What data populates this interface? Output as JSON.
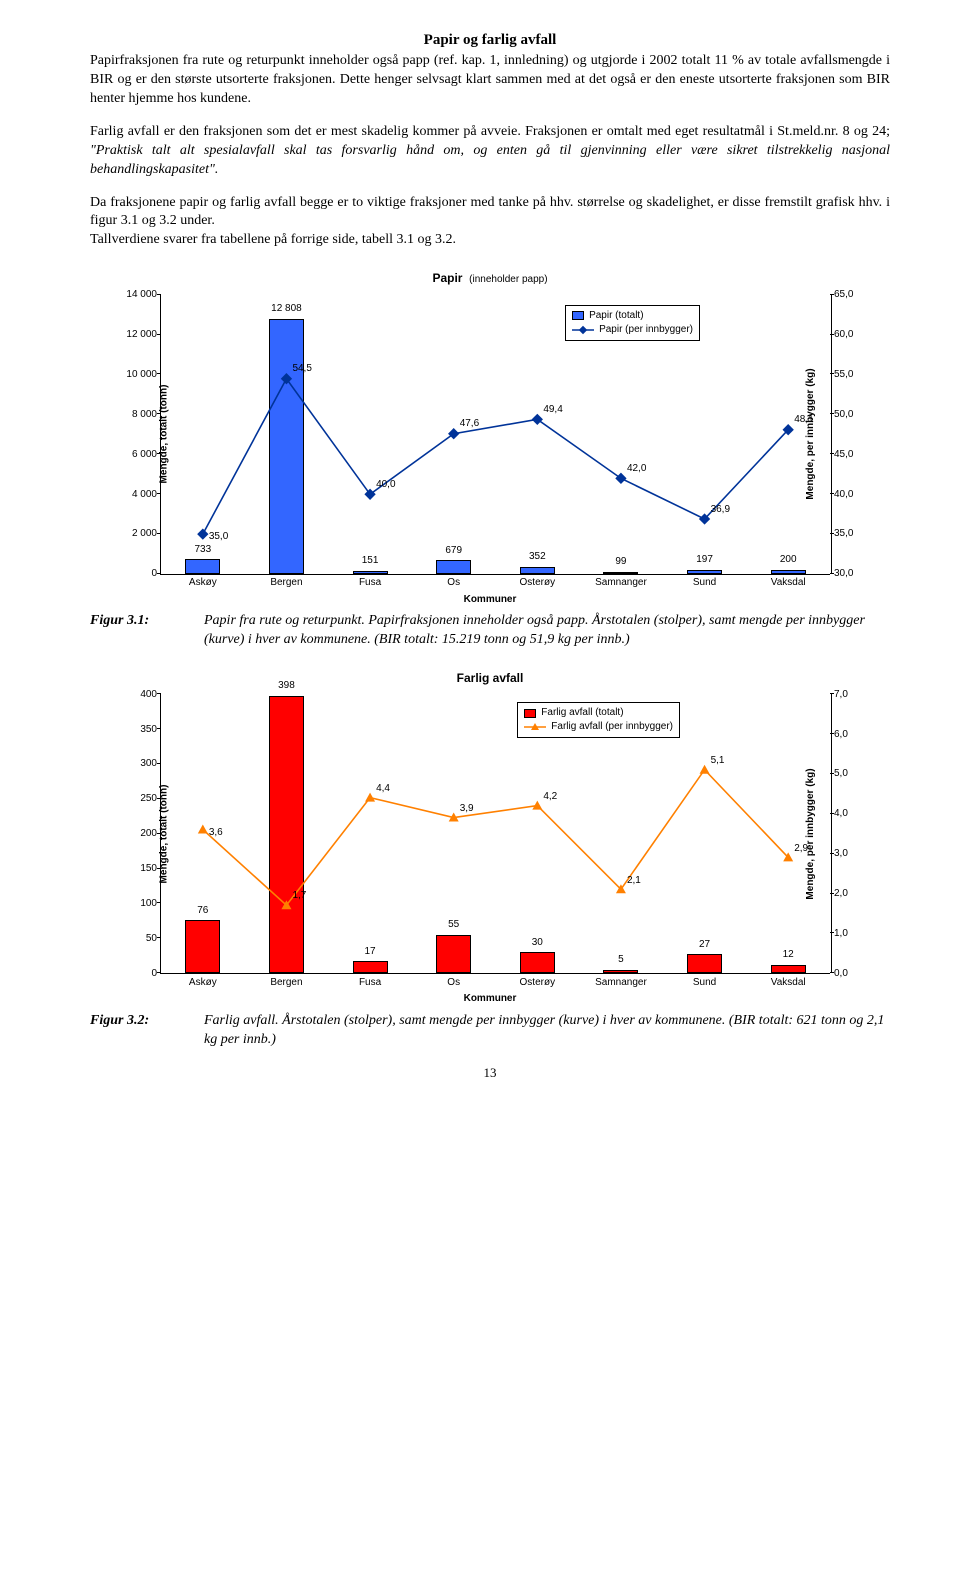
{
  "title": "Papir og farlig avfall",
  "paragraphs": {
    "p1": "Papirfraksjonen fra rute og returpunkt inneholder også papp (ref. kap. 1, innledning) og utgjorde i 2002 totalt 11 % av totale avfallsmengde i BIR og er den største utsorterte fraksjonen. Dette henger selvsagt klart sammen med at det også er den eneste utsorterte fraksjonen som BIR henter hjemme hos kundene.",
    "p2a": "Farlig avfall er den fraksjonen som det er mest skadelig kommer på avveie. Fraksjonen er omtalt med eget resultatmål i St.meld.nr. 8 og 24; ",
    "p2b": "\"Praktisk talt alt spesialavfall skal tas forsvarlig hånd om, og enten gå til gjenvinning eller være sikret tilstrekkelig nasjonal behandlingskapasitet\".",
    "p3": "Da fraksjonene papir og farlig avfall begge er to viktige fraksjoner med tanke på hhv. størrelse og skadelighet, er disse fremstilt grafisk hhv. i figur 3.1 og 3.2 under.",
    "p4": "Tallverdiene svarer fra tabellene på forrige side, tabell 3.1 og 3.2."
  },
  "categories": [
    "Askøy",
    "Bergen",
    "Fusa",
    "Os",
    "Osterøy",
    "Samnanger",
    "Sund",
    "Vaksdal"
  ],
  "chart1": {
    "title_main": "Papir",
    "title_sub": "(inneholder papp)",
    "legend_total": "Papir  (totalt)",
    "legend_per": "Papir  (per innbygger)",
    "ylabel_left": "Mengde, totalt  (tonn)",
    "ylabel_right": "Mengde, per innbygger   (kg)",
    "xlabel": "Kommuner",
    "bar_color": "#3366ff",
    "line_color": "#003399",
    "marker": "diamond",
    "y_left_max": 14000,
    "y_left_ticks": [
      "0",
      "2 000",
      "4 000",
      "6 000",
      "8 000",
      "10 000",
      "12 000",
      "14 000"
    ],
    "y_right_min": 30,
    "y_right_max": 65,
    "y_right_ticks": [
      "30,0",
      "35,0",
      "40,0",
      "45,0",
      "50,0",
      "55,0",
      "60,0",
      "65,0"
    ],
    "bars": [
      733,
      12808,
      151,
      679,
      352,
      99,
      197,
      200
    ],
    "bar_labels": [
      "733",
      "12 808",
      "151",
      "679",
      "352",
      "99",
      "197",
      "200"
    ],
    "line": [
      35.0,
      54.5,
      40.0,
      47.6,
      49.4,
      42.0,
      36.9,
      48.1
    ],
    "line_labels": [
      "35,0",
      "54,5",
      "40,0",
      "47,6",
      "49,4",
      "42,0",
      "36,9",
      "48,1"
    ]
  },
  "chart2": {
    "title_main": "Farlig avfall",
    "legend_total": "Farlig avfall   (totalt)",
    "legend_per": "Farlig avfall   (per innbygger)",
    "ylabel_left": "Mengde, totalt  (tonn)",
    "ylabel_right": "Mengde, per innbygger  (kg)",
    "xlabel": "Kommuner",
    "bar_color": "#ff0000",
    "line_color": "#ff8000",
    "marker": "triangle",
    "y_left_max": 400,
    "y_left_ticks": [
      "0",
      "50",
      "100",
      "150",
      "200",
      "250",
      "300",
      "350",
      "400"
    ],
    "y_right_min": 0,
    "y_right_max": 7,
    "y_right_ticks": [
      "0,0",
      "1,0",
      "2,0",
      "3,0",
      "4,0",
      "5,0",
      "6,0",
      "7,0"
    ],
    "bars": [
      76,
      398,
      17,
      55,
      30,
      5,
      27,
      12
    ],
    "bar_labels": [
      "76",
      "398",
      "17",
      "55",
      "30",
      "5",
      "27",
      "12"
    ],
    "line": [
      3.6,
      1.7,
      4.4,
      3.9,
      4.2,
      2.1,
      5.1,
      2.9
    ],
    "line_labels": [
      "3,6",
      "1,7",
      "4,4",
      "3,9",
      "4,2",
      "2,1",
      "5,1",
      "2,9"
    ]
  },
  "figcaptions": {
    "f1_label": "Figur 3.1:",
    "f1_text": "Papir fra rute og returpunkt. Papirfraksjonen inneholder også papp. Årstotalen (stolper),  samt mengde per innbygger (kurve) i hver av kommunene. (BIR totalt: 15.219 tonn  og 51,9 kg per innb.)",
    "f2_label": "Figur 3.2:",
    "f2_text": "Farlig avfall. Årstotalen (stolper), samt mengde per innbygger (kurve) i hver av kommunene. (BIR totalt: 621 tonn  og 2,1 kg per innb.)"
  },
  "page_number": "13"
}
